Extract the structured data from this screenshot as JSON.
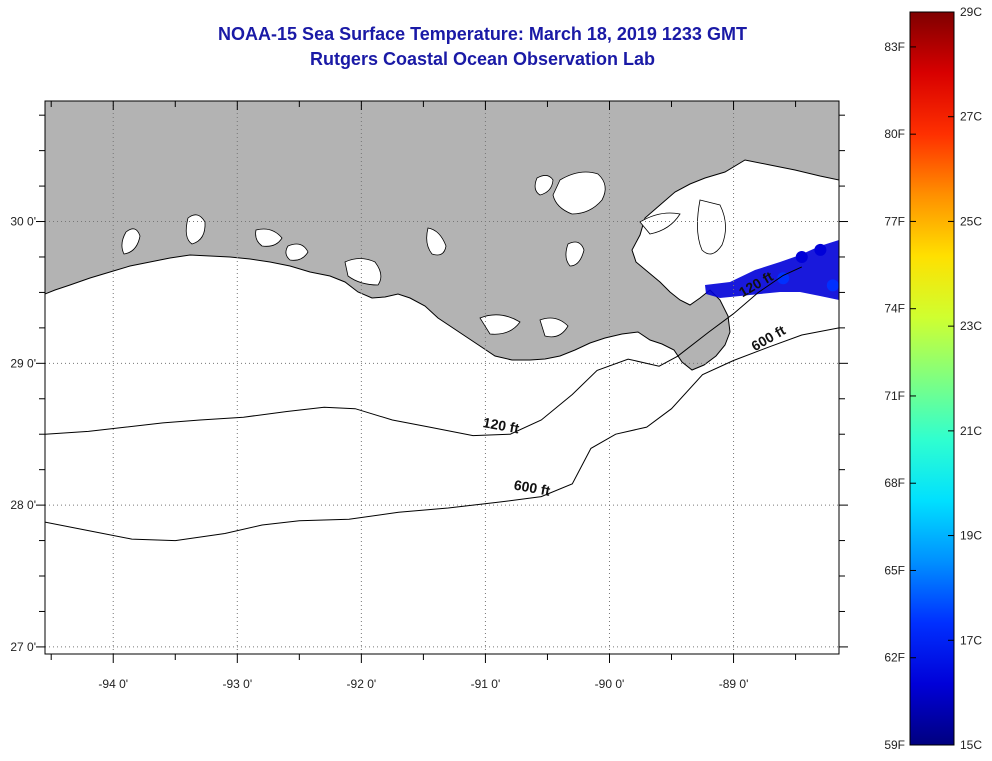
{
  "title": "NOAA-15 Sea Surface Temperature:  March 18, 2019 1233 GMT",
  "subtitle": "Rutgers Coastal Ocean Observation Lab",
  "colors": {
    "title": "#1a1aa6",
    "land": "#b3b3b3",
    "water_no_data": "#ffffff",
    "contour": "#000000"
  },
  "map": {
    "lon_ticks": [
      {
        "value": -94,
        "label": "-94 0'"
      },
      {
        "value": -93,
        "label": "-93 0'"
      },
      {
        "value": -92,
        "label": "-92 0'"
      },
      {
        "value": -91,
        "label": "-91 0'"
      },
      {
        "value": -90,
        "label": "-90 0'"
      },
      {
        "value": -89,
        "label": "-89 0'"
      }
    ],
    "lat_ticks": [
      {
        "value": 30,
        "label": "30 0'"
      },
      {
        "value": 29,
        "label": "29 0'"
      },
      {
        "value": 28,
        "label": "28 0'"
      },
      {
        "value": 27,
        "label": "27 0'"
      }
    ],
    "lon_range": [
      -94.55,
      -88.15
    ],
    "lat_range": [
      26.95,
      30.85
    ],
    "grid": "dotted",
    "isobaths": [
      {
        "label": "120 ft",
        "points": [
          [
            -94.55,
            28.5
          ],
          [
            -94.2,
            28.52
          ],
          [
            -93.9,
            28.55
          ],
          [
            -93.6,
            28.58
          ],
          [
            -93.3,
            28.6
          ],
          [
            -92.95,
            28.62
          ],
          [
            -92.6,
            28.66
          ],
          [
            -92.3,
            28.69
          ],
          [
            -92.05,
            28.68
          ],
          [
            -91.75,
            28.6
          ],
          [
            -91.45,
            28.55
          ],
          [
            -91.1,
            28.49
          ],
          [
            -90.8,
            28.5
          ],
          [
            -90.55,
            28.6
          ],
          [
            -90.3,
            28.78
          ],
          [
            -90.1,
            28.95
          ],
          [
            -89.85,
            29.03
          ],
          [
            -89.6,
            28.98
          ],
          [
            -89.45,
            29.05
          ],
          [
            -89.2,
            29.22
          ],
          [
            -89.0,
            29.35
          ],
          [
            -88.8,
            29.5
          ],
          [
            -88.6,
            29.62
          ],
          [
            -88.45,
            29.68
          ]
        ]
      },
      {
        "label": "600 ft",
        "points": [
          [
            -94.55,
            27.88
          ],
          [
            -94.2,
            27.82
          ],
          [
            -93.85,
            27.76
          ],
          [
            -93.5,
            27.75
          ],
          [
            -93.1,
            27.8
          ],
          [
            -92.8,
            27.86
          ],
          [
            -92.5,
            27.89
          ],
          [
            -92.1,
            27.9
          ],
          [
            -91.7,
            27.95
          ],
          [
            -91.3,
            27.98
          ],
          [
            -90.9,
            28.02
          ],
          [
            -90.55,
            28.06
          ],
          [
            -90.3,
            28.15
          ],
          [
            -90.15,
            28.4
          ],
          [
            -89.95,
            28.5
          ],
          [
            -89.7,
            28.55
          ],
          [
            -89.5,
            28.68
          ],
          [
            -89.25,
            28.92
          ],
          [
            -89.0,
            29.02
          ],
          [
            -88.7,
            29.12
          ],
          [
            -88.45,
            29.2
          ],
          [
            -88.15,
            29.25
          ]
        ]
      }
    ],
    "sst_patch": [
      {
        "lon": -88.45,
        "lat": 29.75,
        "temp_c": 16.5
      },
      {
        "lon": -88.6,
        "lat": 29.6,
        "temp_c": 17.0
      },
      {
        "lon": -88.3,
        "lat": 29.8,
        "temp_c": 16.2
      },
      {
        "lon": -88.2,
        "lat": 29.55,
        "temp_c": 17.5
      }
    ]
  },
  "colorbar": {
    "range_c": [
      15,
      29
    ],
    "celsius_ticks": [
      {
        "value": 29,
        "label": "29C"
      },
      {
        "value": 27,
        "label": "27C"
      },
      {
        "value": 25,
        "label": "25C"
      },
      {
        "value": 23,
        "label": "23C"
      },
      {
        "value": 21,
        "label": "21C"
      },
      {
        "value": 19,
        "label": "19C"
      },
      {
        "value": 17,
        "label": "17C"
      },
      {
        "value": 15,
        "label": "15C"
      }
    ],
    "fahrenheit_ticks": [
      {
        "value": 83,
        "label": "83F"
      },
      {
        "value": 80,
        "label": "80F"
      },
      {
        "value": 77,
        "label": "77F"
      },
      {
        "value": 74,
        "label": "74F"
      },
      {
        "value": 71,
        "label": "71F"
      },
      {
        "value": 68,
        "label": "68F"
      },
      {
        "value": 65,
        "label": "65F"
      },
      {
        "value": 62,
        "label": "62F"
      },
      {
        "value": 59,
        "label": "59F"
      }
    ],
    "palette": [
      "#00007f",
      "#0000d8",
      "#0030ff",
      "#0090ff",
      "#00e0ff",
      "#30ffcf",
      "#80ff80",
      "#cfff30",
      "#ffe000",
      "#ff9000",
      "#ff3000",
      "#d80000",
      "#7f0000"
    ]
  }
}
